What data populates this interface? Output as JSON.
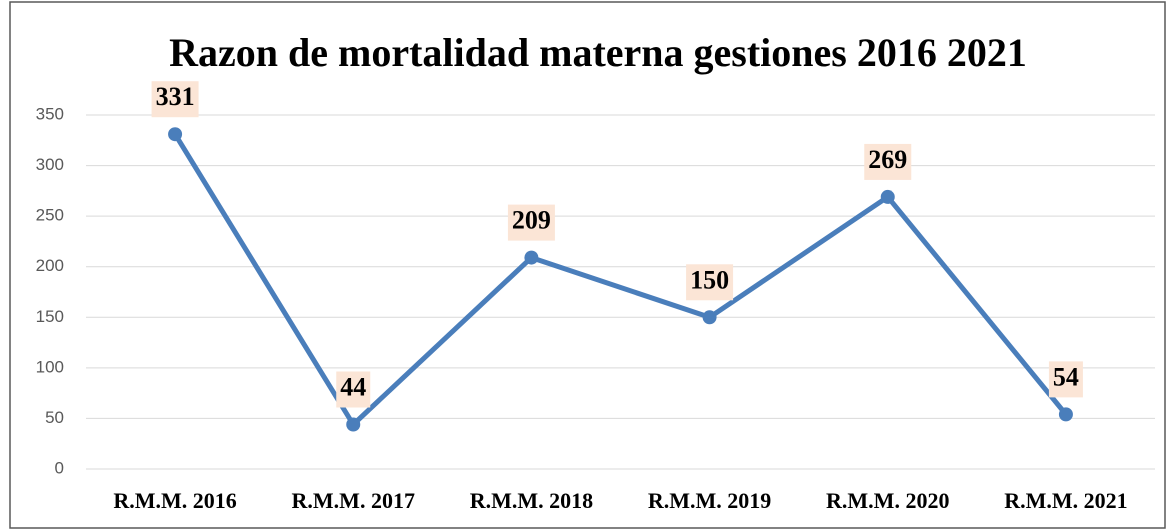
{
  "chart_data": {
    "type": "line",
    "title": "Razon de mortalidad materna gestiones 2016 2021",
    "categories": [
      "R.M.M. 2016",
      "R.M.M. 2017",
      "R.M.M. 2018",
      "R.M.M. 2019",
      "R.M.M. 2020",
      "R.M.M. 2021"
    ],
    "values": [
      331,
      44,
      209,
      150,
      269,
      54
    ],
    "color": "#4a7ebb",
    "ylim": [
      0,
      350
    ],
    "yticks": [
      0,
      50,
      100,
      150,
      200,
      250,
      300,
      350
    ],
    "grid": true
  }
}
